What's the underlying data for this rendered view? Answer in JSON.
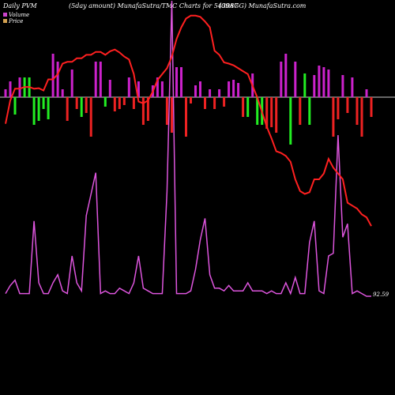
{
  "header": {
    "left": "Daily PVM",
    "mid1": "(5day amount) MunafaSutra/TMC Charts for 543087",
    "mid2": "(09AGG) MunafaSutra.com"
  },
  "legend": {
    "volume_label": "Volume",
    "price_label": "Price",
    "volume_color": "#cc44cc",
    "price_color": "#d2a050"
  },
  "colors": {
    "price_line": "#ff2020",
    "volume_line": "#dd55dd",
    "bar_up": "#cc22cc",
    "bar_down": "#ee2222",
    "bar_green": "#22ee22",
    "baseline": "#cccccc"
  },
  "chart_data": {
    "type": "line",
    "x_count": 78,
    "price_last_label": "92.59",
    "price": [
      295,
      335,
      355,
      355,
      358,
      358,
      355,
      356,
      352,
      371,
      371,
      380,
      398,
      401,
      401,
      407,
      407,
      413,
      413,
      418,
      418,
      413,
      419,
      422,
      417,
      410,
      405,
      380,
      333,
      330,
      335,
      350,
      370,
      380,
      390,
      410,
      440,
      460,
      475,
      480,
      480,
      478,
      470,
      460,
      420,
      413,
      400,
      398,
      395,
      390,
      385,
      380,
      360,
      340,
      315,
      290,
      270,
      248,
      245,
      240,
      230,
      200,
      180,
      175,
      178,
      200,
      200,
      210,
      235,
      220,
      210,
      200,
      160,
      155,
      150,
      140,
      135,
      120
    ],
    "volume": [
      5,
      20,
      30,
      5,
      5,
      5,
      140,
      25,
      5,
      5,
      25,
      40,
      10,
      5,
      75,
      25,
      10,
      150,
      190,
      230,
      5,
      10,
      5,
      5,
      15,
      10,
      5,
      25,
      75,
      15,
      10,
      5,
      5,
      5,
      195,
      550,
      5,
      5,
      5,
      10,
      50,
      105,
      145,
      40,
      15,
      15,
      10,
      20,
      10,
      10,
      10,
      25,
      10,
      10,
      10,
      5,
      10,
      5,
      5,
      25,
      5,
      35,
      5,
      5,
      100,
      140,
      10,
      5,
      75,
      80,
      300,
      110,
      135,
      5,
      10,
      5,
      0,
      0
    ],
    "pvm_bars": [
      10,
      20,
      22,
      25,
      25,
      25,
      35,
      30,
      15,
      28,
      55,
      45,
      10,
      30,
      35,
      15,
      25,
      20,
      50,
      45,
      45,
      12,
      22,
      18,
      15,
      10,
      25,
      15,
      20,
      35,
      30,
      15,
      25,
      20,
      35,
      45,
      38,
      38,
      50,
      8,
      15,
      20,
      15,
      10,
      15,
      10,
      12,
      20,
      22,
      18,
      25,
      25,
      30,
      35,
      35,
      40,
      38,
      45,
      45,
      55,
      60,
      45,
      35,
      30,
      35,
      28,
      40,
      38,
      35,
      50,
      28,
      28,
      20,
      25,
      35,
      50,
      10,
      25
    ],
    "pvm_signs": [
      1,
      1,
      -1,
      1,
      1,
      1,
      -1,
      -1,
      -1,
      -1,
      1,
      1,
      1,
      -1,
      1,
      -1,
      -1,
      -1,
      -1,
      1,
      1,
      -1,
      1,
      -1,
      -1,
      -1,
      1,
      -1,
      1,
      -1,
      -1,
      1,
      1,
      1,
      -1,
      -1,
      1,
      1,
      -1,
      -1,
      1,
      1,
      -1,
      1,
      -1,
      1,
      -1,
      1,
      1,
      1,
      -1,
      -1,
      1,
      -1,
      -1,
      -1,
      -1,
      -1,
      1,
      1,
      -1,
      1,
      -1,
      1,
      -1,
      1,
      1,
      1,
      1,
      -1,
      -1,
      1,
      -1,
      1,
      -1,
      -1,
      1,
      -1
    ],
    "pvm_green": [
      false,
      false,
      true,
      false,
      true,
      true,
      true,
      true,
      true,
      true,
      false,
      false,
      false,
      false,
      false,
      false,
      true,
      false,
      false,
      false,
      false,
      true,
      false,
      false,
      false,
      false,
      false,
      false,
      false,
      false,
      false,
      false,
      false,
      false,
      false,
      false,
      false,
      false,
      false,
      false,
      false,
      false,
      false,
      false,
      false,
      false,
      false,
      false,
      false,
      false,
      false,
      true,
      false,
      true,
      true,
      false,
      false,
      false,
      false,
      false,
      true,
      false,
      false,
      true,
      true,
      false,
      false,
      false,
      false,
      false,
      false,
      false,
      false,
      false,
      false,
      false,
      false,
      false
    ]
  }
}
